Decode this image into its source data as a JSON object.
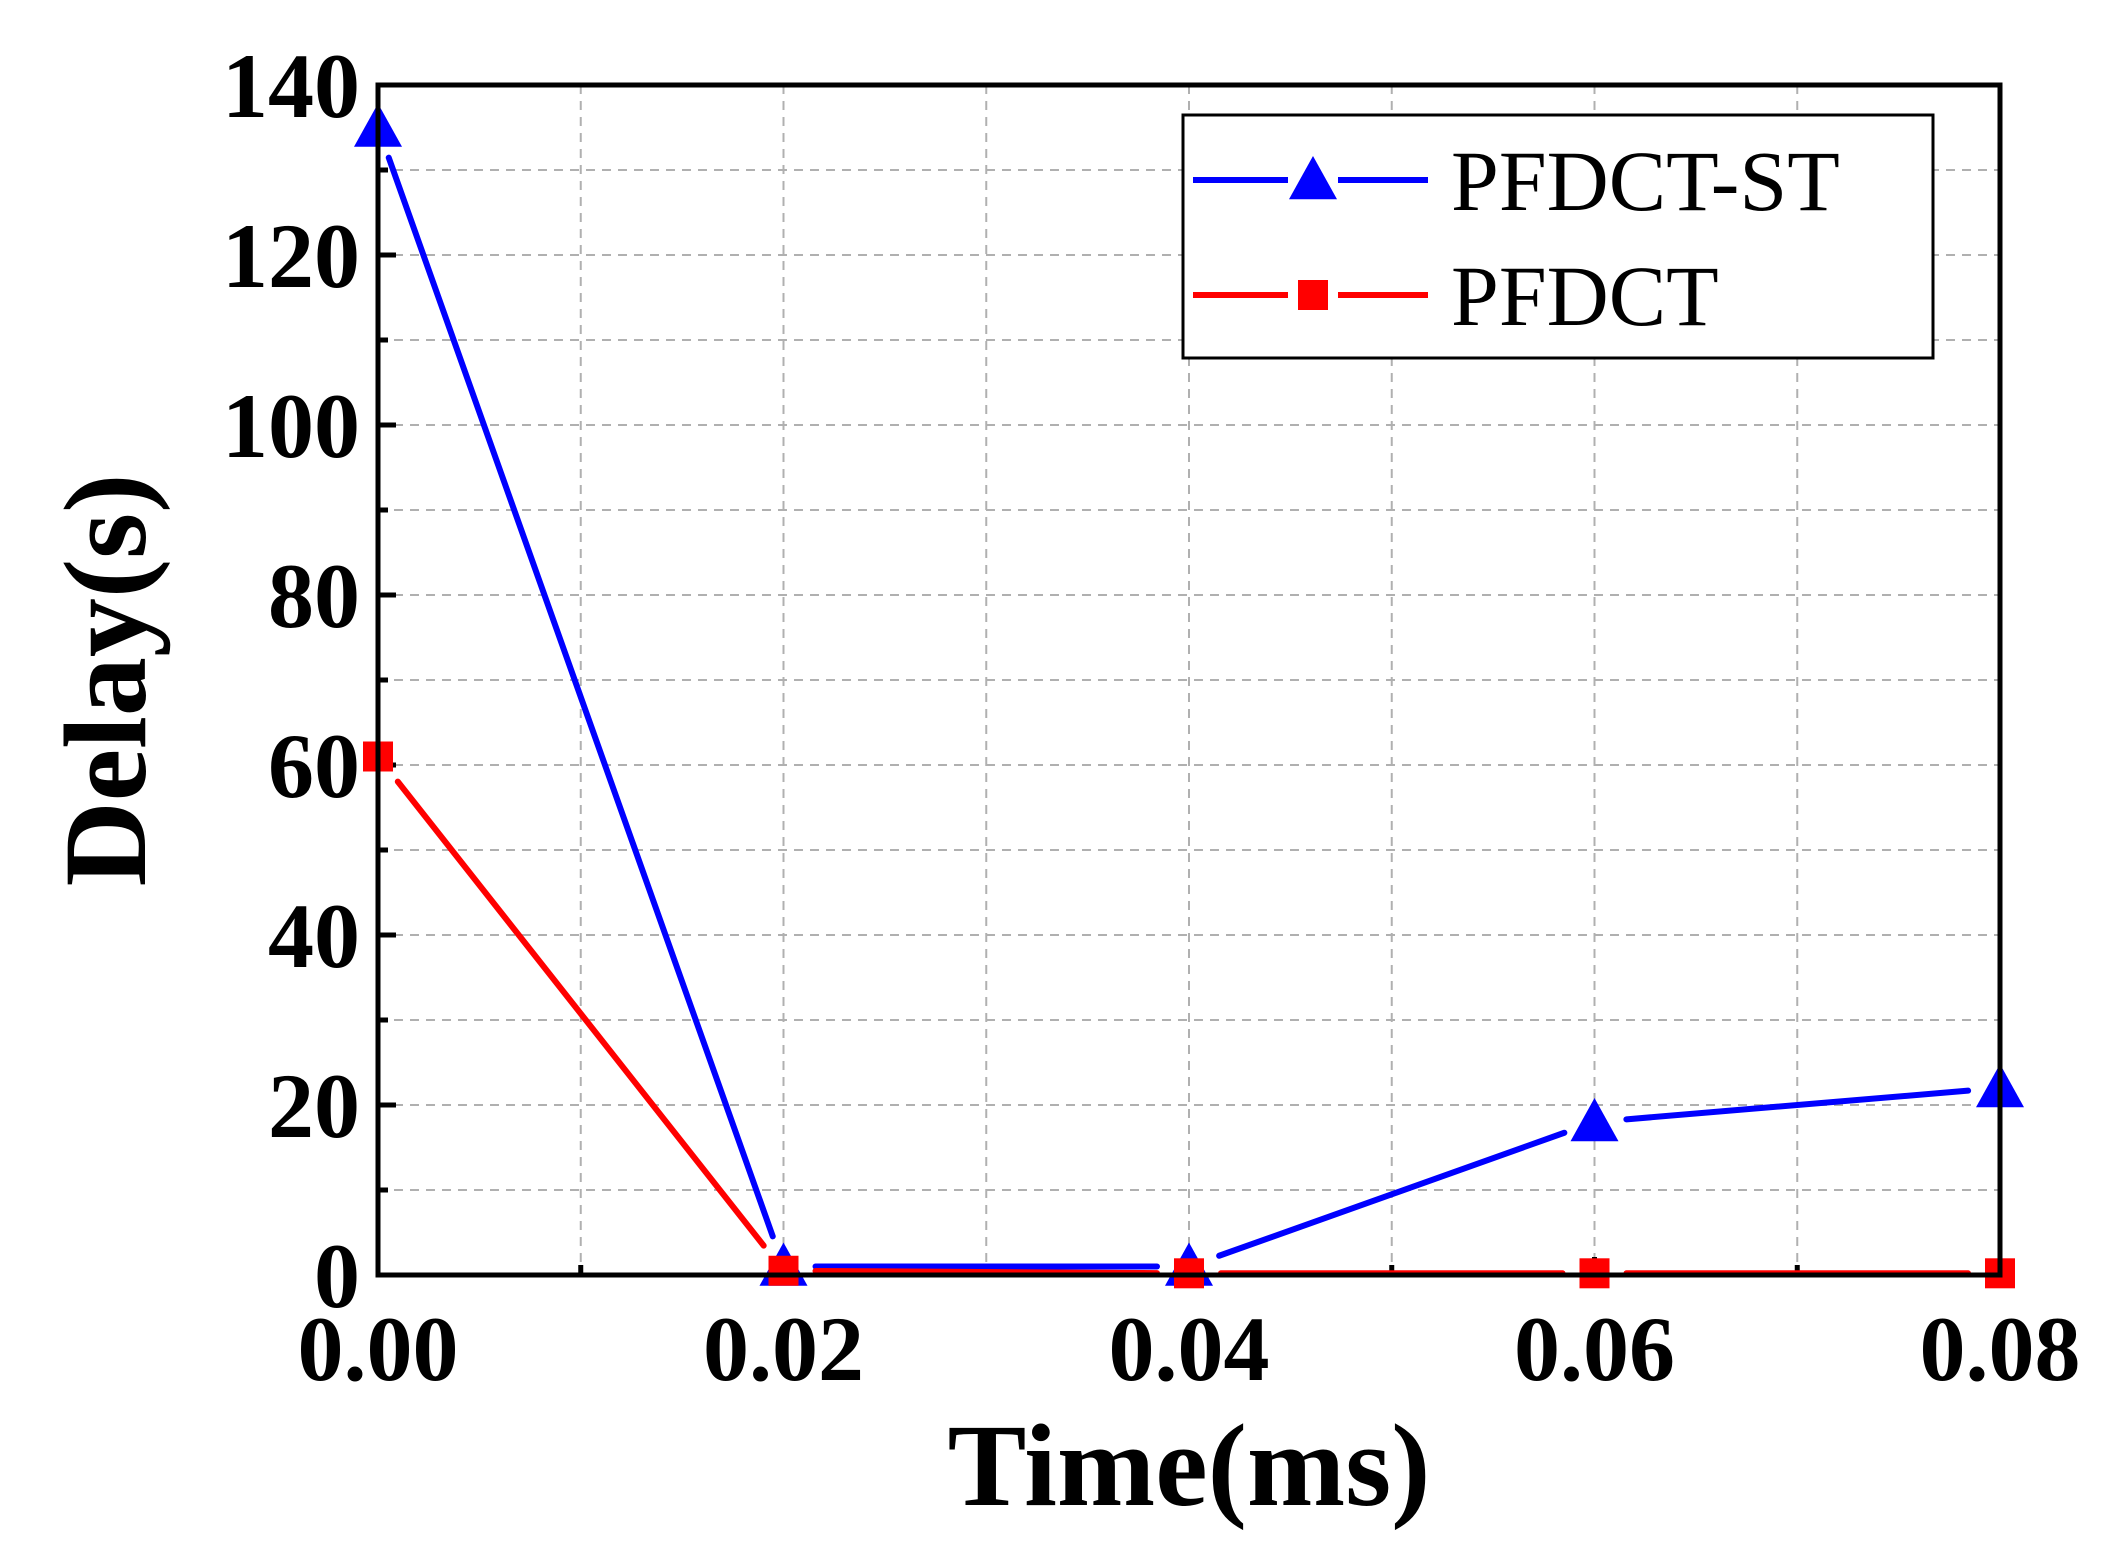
{
  "chart_data": {
    "type": "line",
    "title": "",
    "xlabel": "Time(ms)",
    "ylabel": "Delay(s)",
    "xlim": [
      0,
      0.08
    ],
    "ylim": [
      0,
      140
    ],
    "xticks": [
      0,
      0.02,
      0.04,
      0.06,
      0.08
    ],
    "xtick_labels": [
      "0.00",
      "0.02",
      "0.04",
      "0.06",
      "0.08"
    ],
    "yticks": [
      0,
      20,
      40,
      60,
      80,
      100,
      120,
      140
    ],
    "ytick_labels": [
      "0",
      "20",
      "40",
      "60",
      "80",
      "100",
      "120",
      "140"
    ],
    "grid": true,
    "legend_position": "top-right",
    "series": [
      {
        "name": "PFDCT-ST",
        "color": "#0000ff",
        "marker": "triangle",
        "x": [
          0,
          0.02,
          0.04,
          0.06,
          0.08
        ],
        "values": [
          135,
          1,
          1,
          18,
          22
        ]
      },
      {
        "name": "PFDCT",
        "color": "#ff0000",
        "marker": "square",
        "x": [
          0,
          0.02,
          0.04,
          0.06,
          0.08
        ],
        "values": [
          61,
          0.5,
          0.2,
          0.2,
          0.2
        ]
      }
    ]
  }
}
